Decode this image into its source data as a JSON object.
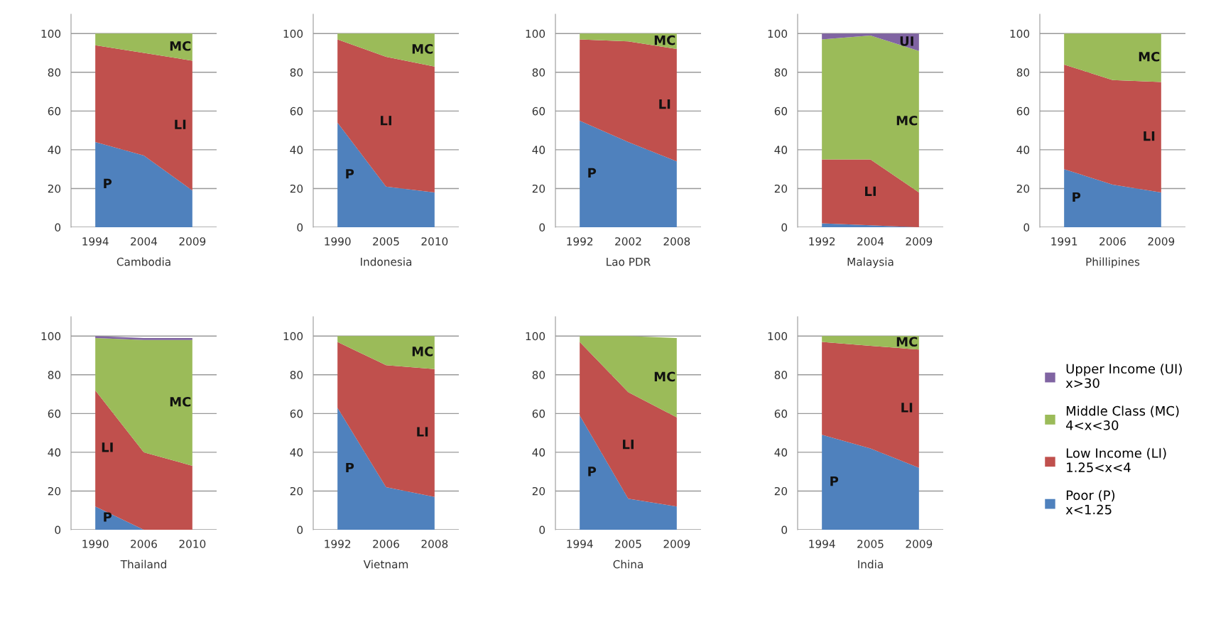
{
  "chart_data": [
    {
      "type": "area",
      "stacked": true,
      "xlabel": "Cambodia",
      "categories": [
        "1994",
        "2004",
        "2009"
      ],
      "ylim": [
        0,
        110
      ],
      "yticks": [
        0,
        20,
        40,
        60,
        80,
        100
      ],
      "grid": "y",
      "series": [
        {
          "color": "#4f81bd",
          "values": [
            44,
            37,
            19
          ]
        },
        {
          "color": "#c0504d",
          "values": [
            50,
            53,
            67
          ]
        },
        {
          "color": "#9bbb59",
          "values": [
            6,
            10,
            14
          ]
        }
      ],
      "annotations": [
        "P",
        "LI",
        "MC"
      ]
    },
    {
      "type": "area",
      "stacked": true,
      "xlabel": "Indonesia",
      "categories": [
        "1990",
        "2005",
        "2010"
      ],
      "ylim": [
        0,
        110
      ],
      "yticks": [
        0,
        20,
        40,
        60,
        80,
        100
      ],
      "grid": "y",
      "series": [
        {
          "color": "#4f81bd",
          "values": [
            54,
            21,
            18
          ]
        },
        {
          "color": "#c0504d",
          "values": [
            43,
            67,
            65
          ]
        },
        {
          "color": "#9bbb59",
          "values": [
            3,
            12,
            17
          ]
        }
      ],
      "annotations": [
        "P",
        "LI",
        "MC"
      ]
    },
    {
      "type": "area",
      "stacked": true,
      "xlabel": "Lao PDR",
      "categories": [
        "1992",
        "2002",
        "2008"
      ],
      "ylim": [
        0,
        110
      ],
      "yticks": [
        0,
        20,
        40,
        60,
        80,
        100
      ],
      "grid": "y",
      "series": [
        {
          "color": "#4f81bd",
          "values": [
            55,
            44,
            34
          ]
        },
        {
          "color": "#c0504d",
          "values": [
            42,
            52,
            58
          ]
        },
        {
          "color": "#9bbb59",
          "values": [
            3,
            4,
            8
          ]
        }
      ],
      "annotations": [
        "P",
        "LI",
        "MC"
      ]
    },
    {
      "type": "area",
      "stacked": true,
      "xlabel": "Malaysia",
      "categories": [
        "1992",
        "2004",
        "2009"
      ],
      "ylim": [
        0,
        110
      ],
      "yticks": [
        0,
        20,
        40,
        60,
        80,
        100
      ],
      "grid": "y",
      "legend": "right",
      "series": [
        {
          "name": "Poor (P)\nx<1.25",
          "color": "#4f81bd",
          "values": [
            2,
            1,
            0
          ]
        },
        {
          "name": "Low Income (LI)\n1.25<x<4",
          "color": "#c0504d",
          "values": [
            33,
            34,
            18
          ]
        },
        {
          "name": "Middle Class (MC)\n4<x<30",
          "color": "#9bbb59",
          "values": [
            62,
            64,
            73
          ]
        },
        {
          "name": "Upper Income (UI)\nx>30",
          "color": "#8064a2",
          "values": [
            3,
            1,
            9
          ]
        }
      ],
      "annotations": [
        "LI",
        "MC",
        "UI"
      ]
    },
    {
      "type": "area",
      "stacked": true,
      "xlabel": "Phillipines",
      "categories": [
        "1991",
        "2006",
        "2009"
      ],
      "ylim": [
        0,
        110
      ],
      "yticks": [
        0,
        20,
        40,
        60,
        80,
        100
      ],
      "grid": "y",
      "series": [
        {
          "color": "#4f81bd",
          "values": [
            30,
            22,
            18
          ]
        },
        {
          "color": "#c0504d",
          "values": [
            54,
            54,
            57
          ]
        },
        {
          "color": "#9bbb59",
          "values": [
            16,
            24,
            25
          ]
        }
      ],
      "annotations": [
        "P",
        "LI",
        "MC"
      ]
    },
    {
      "type": "area",
      "stacked": true,
      "xlabel": "Thailand",
      "categories": [
        "1990",
        "2006",
        "2010"
      ],
      "ylim": [
        0,
        110
      ],
      "yticks": [
        0,
        20,
        40,
        60,
        80,
        100
      ],
      "grid": "y",
      "series": [
        {
          "color": "#4f81bd",
          "values": [
            12,
            0,
            0
          ]
        },
        {
          "color": "#c0504d",
          "values": [
            60,
            40,
            33
          ]
        },
        {
          "color": "#9bbb59",
          "values": [
            27,
            58,
            65
          ]
        },
        {
          "color": "#8064a2",
          "values": [
            1,
            1,
            1
          ]
        }
      ],
      "annotations": [
        "P",
        "LI",
        "MC"
      ]
    },
    {
      "type": "area",
      "stacked": true,
      "xlabel": "Vietnam",
      "categories": [
        "1992",
        "2006",
        "2008"
      ],
      "ylim": [
        0,
        110
      ],
      "yticks": [
        0,
        20,
        40,
        60,
        80,
        100
      ],
      "grid": "y",
      "series": [
        {
          "color": "#4f81bd",
          "values": [
            63,
            22,
            17
          ]
        },
        {
          "color": "#c0504d",
          "values": [
            34,
            63,
            66
          ]
        },
        {
          "color": "#9bbb59",
          "values": [
            3,
            15,
            17
          ]
        }
      ],
      "annotations": [
        "P",
        "LI",
        "MC"
      ]
    },
    {
      "type": "area",
      "stacked": true,
      "xlabel": "China",
      "categories": [
        "1994",
        "2005",
        "2009"
      ],
      "ylim": [
        0,
        110
      ],
      "yticks": [
        0,
        20,
        40,
        60,
        80,
        100
      ],
      "grid": "y",
      "series": [
        {
          "color": "#4f81bd",
          "values": [
            59,
            16,
            12
          ]
        },
        {
          "color": "#c0504d",
          "values": [
            38,
            55,
            46
          ]
        },
        {
          "color": "#9bbb59",
          "values": [
            3,
            29,
            41
          ]
        }
      ],
      "annotations": [
        "P",
        "LI",
        "MC"
      ]
    },
    {
      "type": "area",
      "stacked": true,
      "xlabel": "India",
      "categories": [
        "1994",
        "2005",
        "2009"
      ],
      "ylim": [
        0,
        110
      ],
      "yticks": [
        0,
        20,
        40,
        60,
        80,
        100
      ],
      "grid": "y",
      "series": [
        {
          "color": "#4f81bd",
          "values": [
            49,
            42,
            32
          ]
        },
        {
          "color": "#c0504d",
          "values": [
            48,
            53,
            61
          ]
        },
        {
          "color": "#9bbb59",
          "values": [
            3,
            5,
            7
          ]
        }
      ],
      "annotations": [
        "P",
        "LI",
        "MC"
      ]
    }
  ]
}
